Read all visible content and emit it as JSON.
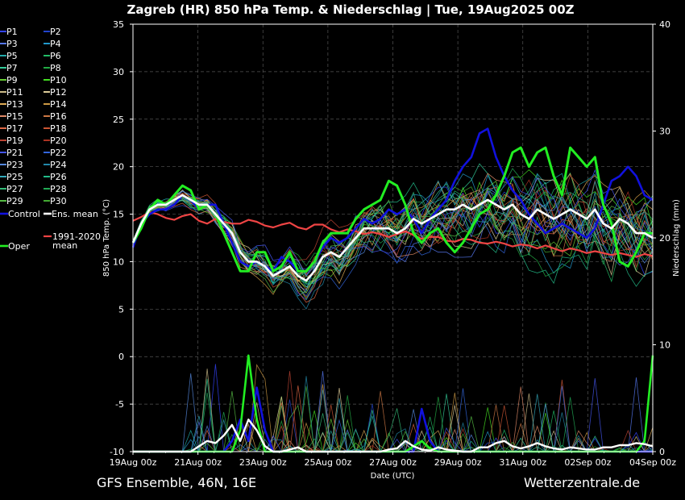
{
  "chart_data": {
    "type": "line",
    "title": "Zagreb  (HR)  850 hPa Temp. & Niederschlag | Tue, 19Aug2025 00Z",
    "ylabel": "850 hPa Temp. (°C)",
    "y2label": "Niederschlag (mm)",
    "xlabel": "Date (UTC)",
    "footer_left": "GFS Ensemble, 46N, 16E",
    "footer_right": "Wetterzentrale.de",
    "ylim": [
      -10,
      35
    ],
    "y2lim": [
      0,
      40
    ],
    "y_ticks": [
      "35",
      "30",
      "25",
      "20",
      "15",
      "10",
      "5",
      "0",
      "-5",
      "-10"
    ],
    "y2_ticks": [
      "40",
      "30",
      "20",
      "10",
      "0"
    ],
    "x_ticks": [
      "19Aug 00z",
      "21Aug 00z",
      "23Aug 00z",
      "25Aug 00z",
      "27Aug 00z",
      "29Aug 00z",
      "31Aug 00z",
      "02Sep 00z",
      "04Sep 00z"
    ],
    "grid": true,
    "legend_position": "left",
    "legend": [
      {
        "label": "P1",
        "color": "#3344ff"
      },
      {
        "label": "P2",
        "color": "#2244cc"
      },
      {
        "label": "P3",
        "color": "#5577ee"
      },
      {
        "label": "P4",
        "color": "#2299cc"
      },
      {
        "label": "P5",
        "color": "#22aaaa"
      },
      {
        "label": "P6",
        "color": "#22bb66"
      },
      {
        "label": "P7",
        "color": "#33cc99"
      },
      {
        "label": "P8",
        "color": "#22aa44"
      },
      {
        "label": "P9",
        "color": "#66cc33"
      },
      {
        "label": "P10",
        "color": "#44dd22"
      },
      {
        "label": "P11",
        "color": "#ccbb88"
      },
      {
        "label": "P12",
        "color": "#ddcc99"
      },
      {
        "label": "P13",
        "color": "#ddaa55"
      },
      {
        "label": "P14",
        "color": "#cc9944"
      },
      {
        "label": "P15",
        "color": "#dd8866"
      },
      {
        "label": "P16",
        "color": "#cc7744"
      },
      {
        "label": "P17",
        "color": "#dd6644"
      },
      {
        "label": "P18",
        "color": "#cc5533"
      },
      {
        "label": "P19",
        "color": "#bb4433"
      },
      {
        "label": "P20",
        "color": "#aa3322"
      },
      {
        "label": "P21",
        "color": "#4455ee"
      },
      {
        "label": "P22",
        "color": "#3366dd"
      },
      {
        "label": "P23",
        "color": "#5588dd"
      },
      {
        "label": "P24",
        "color": "#2288aa"
      },
      {
        "label": "P25",
        "color": "#33aabb"
      },
      {
        "label": "P26",
        "color": "#22bb88"
      },
      {
        "label": "P27",
        "color": "#33bb77"
      },
      {
        "label": "P28",
        "color": "#22aa55"
      },
      {
        "label": "P29",
        "color": "#55bb44"
      },
      {
        "label": "P30",
        "color": "#44aa33"
      },
      {
        "label": "Control",
        "color": "#1111dd"
      },
      {
        "label": "Ens. mean",
        "color": "#ffffff"
      },
      {
        "label": "Oper",
        "color": "#22ee22"
      },
      {
        "label": "1991-2020 mean",
        "color": "#ee4444"
      }
    ],
    "x_steps": 64,
    "series": [
      {
        "name": "Ens. mean",
        "color": "#ffffff",
        "values": [
          12,
          14,
          15.5,
          16,
          16,
          16.5,
          17,
          16.5,
          16,
          16,
          15,
          14,
          13,
          11,
          10,
          10,
          9.5,
          8.5,
          9,
          9.5,
          8.5,
          8,
          9,
          10.5,
          11,
          10.5,
          11.5,
          12.5,
          13.5,
          13.5,
          13.5,
          13.5,
          13,
          13.5,
          14.5,
          14,
          14.5,
          15,
          15.5,
          15.5,
          16,
          15.5,
          16,
          16.5,
          16,
          15.5,
          16,
          15,
          14.5,
          15.5,
          15,
          14.5,
          15,
          15.5,
          15,
          14.5,
          15.5,
          14,
          13.5,
          14.5,
          14,
          13,
          13,
          12.5
        ]
      },
      {
        "name": "Oper",
        "color": "#22ee22",
        "values": [
          12,
          13.5,
          15.5,
          16.5,
          16,
          17,
          18,
          17.5,
          15.5,
          16,
          15,
          13,
          11,
          9,
          9,
          11,
          11,
          9,
          9.5,
          11,
          9,
          9,
          10,
          12,
          13,
          13,
          13,
          14.5,
          15.5,
          16,
          16.5,
          18.5,
          18,
          16,
          13,
          12,
          13,
          13.5,
          12,
          11,
          12,
          13.5,
          15,
          15.5,
          17,
          19,
          21.5,
          22,
          20,
          21.5,
          22,
          19,
          17,
          22,
          21,
          20,
          21,
          16,
          14,
          10,
          9.5,
          11,
          13,
          13
        ]
      },
      {
        "name": "Control",
        "color": "#1111dd",
        "values": [
          11.5,
          14,
          15,
          15.5,
          15.5,
          16,
          17,
          16.5,
          15.5,
          16,
          16,
          14,
          12,
          10,
          9.5,
          10,
          9.5,
          9,
          10.5,
          10,
          9,
          9,
          10,
          11.5,
          12.5,
          12,
          12.5,
          13.5,
          14.5,
          14,
          14.5,
          15.5,
          15,
          15.5,
          14.5,
          13,
          14.5,
          15.5,
          16.5,
          18.5,
          20,
          21,
          23.5,
          24,
          21,
          19,
          17.5,
          16.5,
          15,
          14,
          13,
          13.5,
          14,
          13.5,
          13,
          12.5,
          13.5,
          16,
          18.5,
          19,
          20,
          19,
          17,
          16.5
        ]
      },
      {
        "name": "1991-2020 mean",
        "color": "#ee4444",
        "values": [
          14.3,
          14.7,
          15.2,
          15.0,
          14.6,
          14.4,
          14.8,
          15.0,
          14.3,
          14.0,
          14.5,
          14.2,
          14.0,
          14.0,
          14.4,
          14.2,
          13.8,
          13.6,
          13.9,
          14.1,
          13.6,
          13.4,
          13.9,
          13.9,
          13.4,
          13.1,
          13.4,
          13.2,
          12.9,
          13.1,
          12.9,
          12.6,
          12.9,
          13.2,
          12.8,
          12.4,
          12.6,
          12.6,
          12.2,
          12.1,
          12.4,
          12.3,
          12.0,
          11.9,
          12.1,
          11.9,
          11.6,
          11.8,
          11.7,
          11.4,
          11.7,
          11.4,
          11.1,
          11.4,
          11.2,
          10.9,
          11.1,
          10.9,
          10.7,
          10.9,
          10.7,
          10.5,
          10.8,
          10.6
        ]
      }
    ],
    "precip_series": [
      {
        "name": "Ens. mean",
        "color": "#ffffff",
        "values": [
          0,
          0,
          0,
          0,
          0,
          0,
          0,
          0,
          0.5,
          1,
          0.8,
          1.5,
          2.5,
          1,
          3,
          2,
          0.5,
          0,
          0,
          0.2,
          0.4,
          0,
          0,
          0,
          0,
          0,
          0,
          0,
          0,
          0,
          0,
          0.2,
          0.3,
          1,
          0.5,
          0.2,
          0.1,
          0.4,
          0.2,
          0.1,
          0,
          0,
          0.4,
          0.4,
          0.8,
          1,
          0.5,
          0.3,
          0.5,
          0.8,
          0.5,
          0.3,
          0.2,
          0.4,
          0.3,
          0.2,
          0.2,
          0.4,
          0.4,
          0.6,
          0.6,
          0.8,
          0.7,
          0.5
        ]
      },
      {
        "name": "Oper",
        "color": "#22ee22",
        "values": [
          0,
          0,
          0,
          0,
          0,
          0,
          0,
          0,
          0,
          0,
          0,
          0,
          0,
          2,
          9,
          3,
          0,
          0,
          0,
          0,
          0,
          0,
          0,
          0,
          0,
          0,
          0,
          0,
          0,
          0,
          0,
          0,
          0,
          0,
          0.5,
          1,
          0.3,
          0,
          0,
          0,
          0,
          0,
          0,
          0,
          0,
          0,
          0,
          0,
          0,
          0,
          0,
          0,
          0,
          0,
          0,
          0,
          0,
          0,
          0,
          0,
          0,
          0,
          1,
          9
        ]
      },
      {
        "name": "Control",
        "color": "#1111dd",
        "values": [
          0,
          0,
          0,
          0,
          0,
          0,
          0,
          0,
          0,
          0,
          0,
          0,
          1,
          3,
          1,
          6,
          2,
          0,
          0,
          0,
          0,
          0,
          0,
          0,
          0,
          0,
          0,
          0,
          0,
          0,
          0,
          0,
          0,
          0,
          0,
          4,
          1,
          0,
          0,
          0,
          0,
          0,
          0,
          0,
          0,
          0,
          0,
          0,
          0,
          0,
          0,
          0,
          0,
          0,
          0,
          0,
          0,
          0,
          0,
          0,
          0,
          0,
          0,
          0
        ]
      }
    ]
  }
}
